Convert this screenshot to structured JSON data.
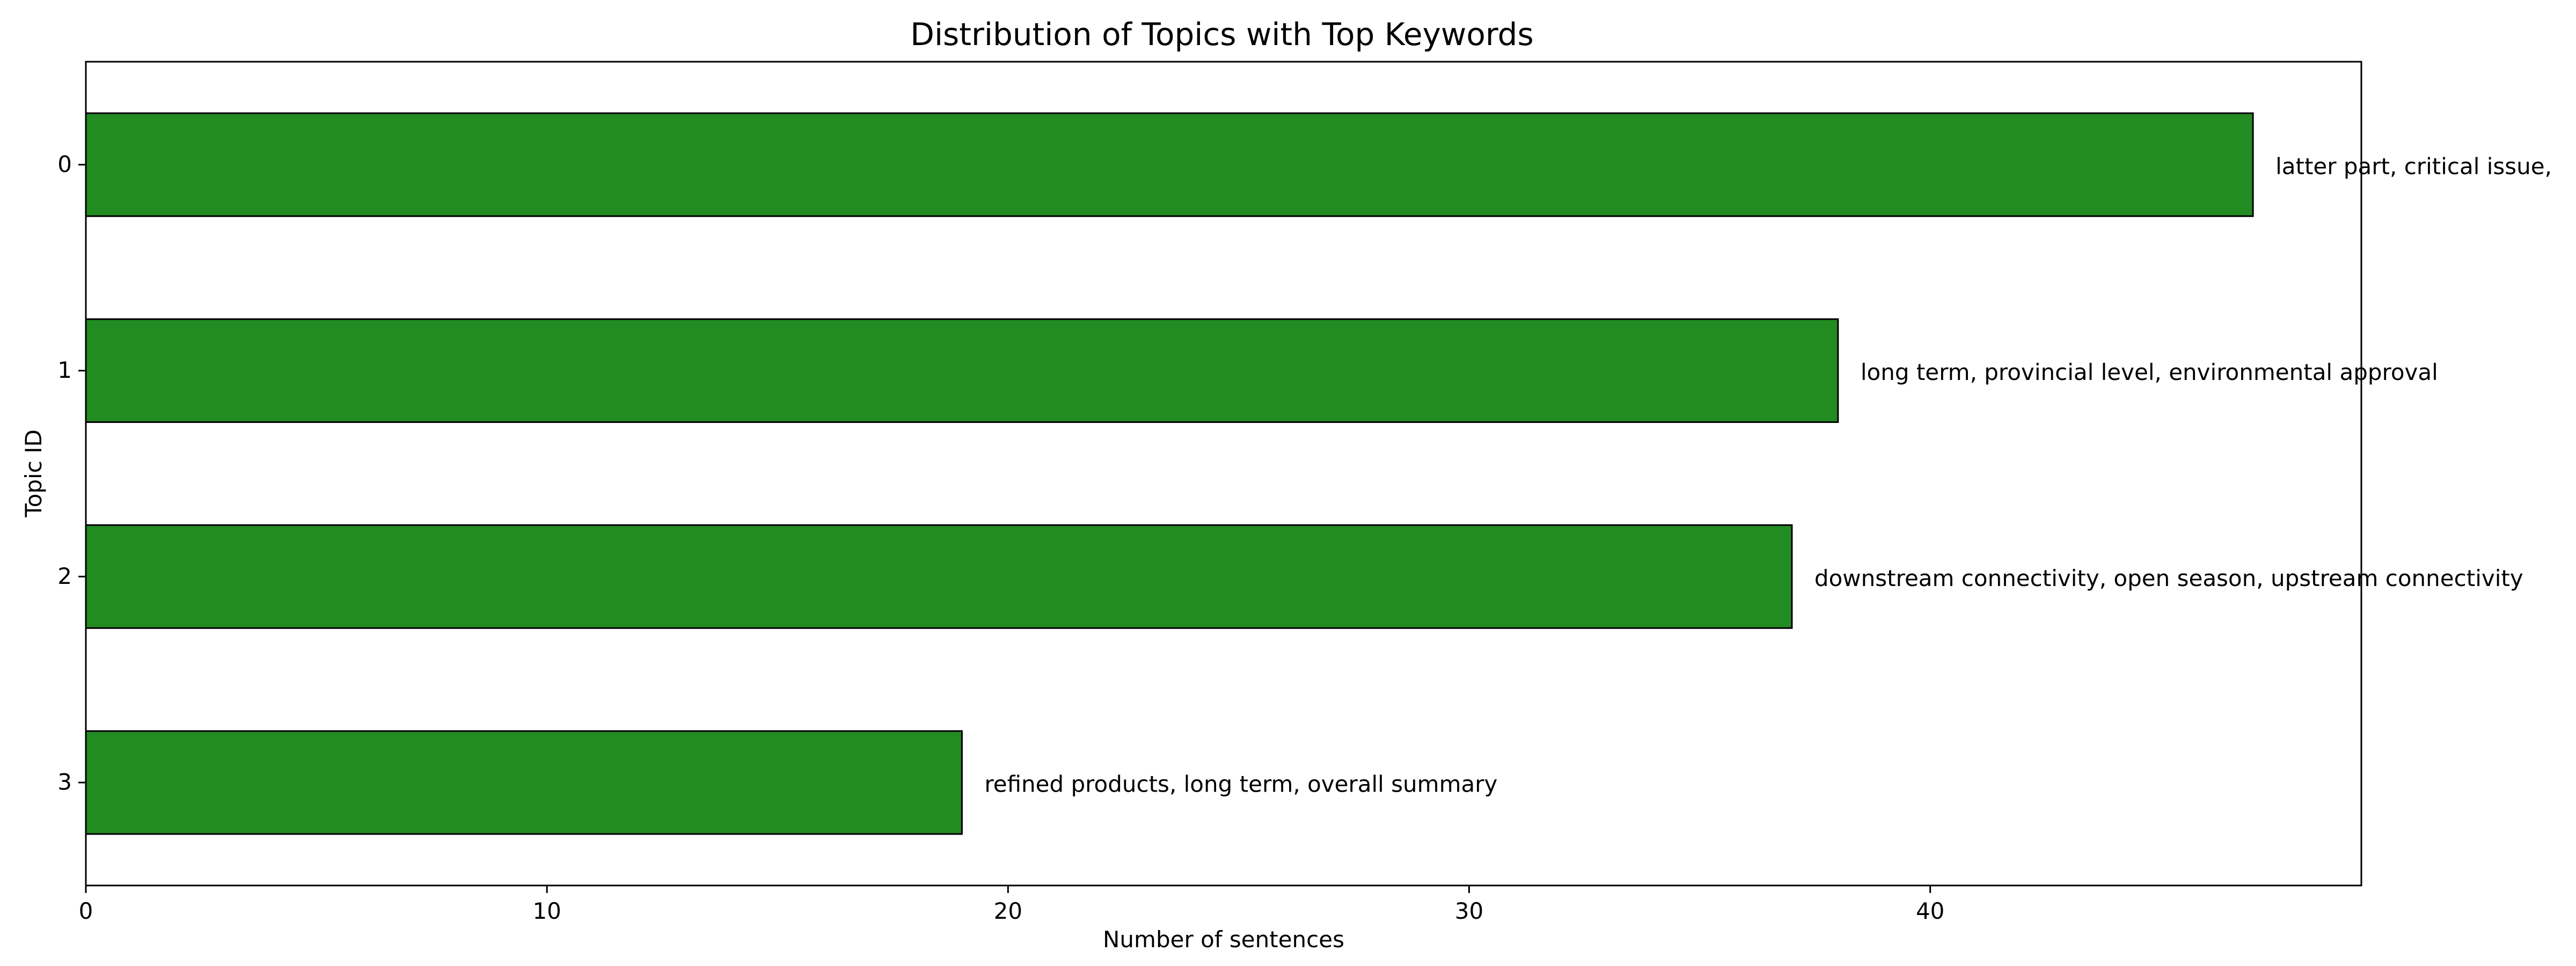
{
  "chart_data": {
    "type": "bar",
    "orientation": "horizontal",
    "title": "Distribution of Topics with Top Keywords",
    "xlabel": "Number of sentences",
    "ylabel": "Topic ID",
    "categories": [
      "0",
      "1",
      "2",
      "3"
    ],
    "values": [
      47,
      38,
      37,
      19
    ],
    "bar_labels": [
      "latter part, critical issue,",
      "long term, provincial level, environmental approval",
      "downstream connectivity, open season, upstream connectivity",
      "refined products, long term, overall summary"
    ],
    "xlim": [
      0,
      49.35
    ],
    "xticks": [
      0,
      10,
      20,
      30,
      40
    ],
    "xtick_labels": [
      "0",
      "10",
      "20",
      "30",
      "40"
    ],
    "grid": false,
    "legend": "none",
    "colors": {
      "bar": "#228b22",
      "edge": "#000000"
    }
  }
}
